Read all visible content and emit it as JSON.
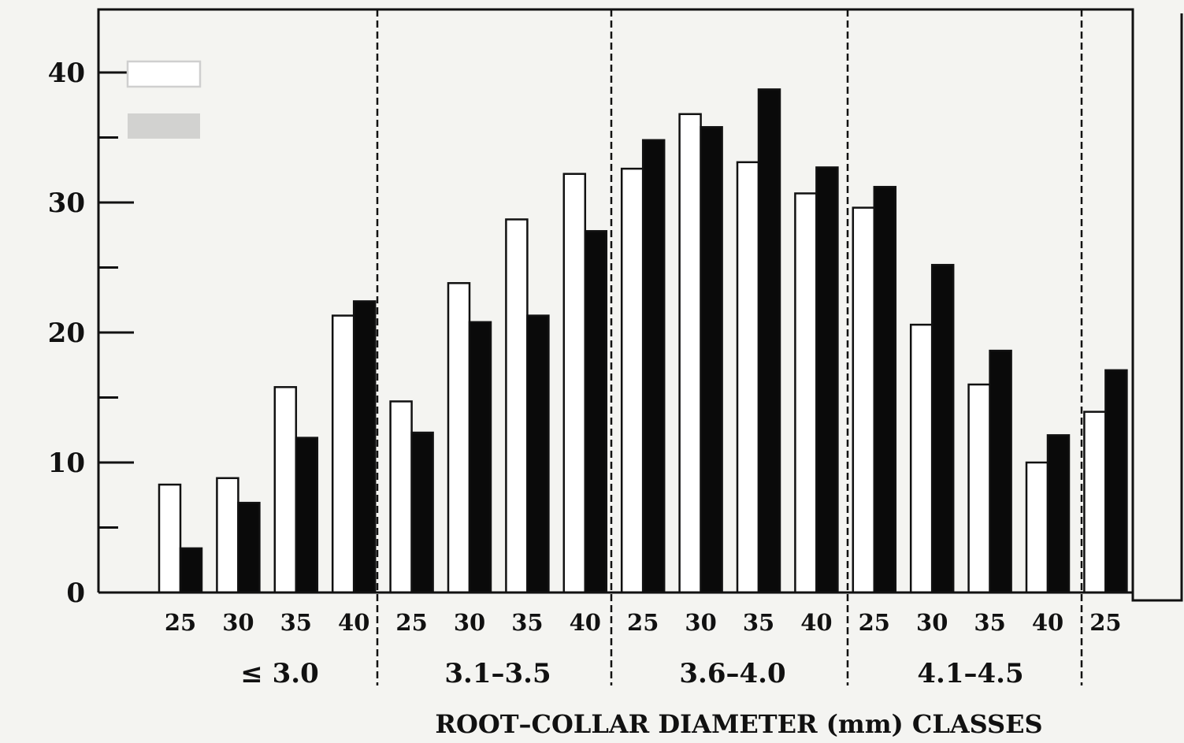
{
  "chart_data": {
    "type": "bar",
    "xlabel": "ROOT–COLLAR DIAMETER (mm) CLASSES",
    "ylabel": "",
    "ylim": [
      0,
      45
    ],
    "yticks": [
      "0",
      "10",
      "20",
      "30",
      "40"
    ],
    "groups": [
      {
        "label": "≤ 3.0",
        "categories": [
          "25",
          "30",
          "35",
          "40"
        ]
      },
      {
        "label": "3.1–3.5",
        "categories": [
          "25",
          "30",
          "35",
          "40"
        ]
      },
      {
        "label": "3.6–4.0",
        "categories": [
          "25",
          "30",
          "35",
          "40"
        ]
      },
      {
        "label": "4.1–4.5",
        "categories": [
          "25",
          "30",
          "35",
          "40"
        ]
      },
      {
        "label": "",
        "categories": [
          "25"
        ]
      }
    ],
    "series": [
      {
        "fill": "#ffffff",
        "values": [
          8.3,
          8.8,
          15.8,
          21.3,
          14.7,
          23.8,
          28.7,
          32.2,
          32.6,
          36.8,
          33.1,
          30.7,
          29.6,
          20.6,
          16.0,
          10.0,
          13.9
        ]
      },
      {
        "fill": "#0a0a0a",
        "values": [
          3.4,
          6.9,
          11.9,
          22.4,
          12.3,
          20.8,
          21.3,
          27.8,
          34.8,
          35.8,
          38.7,
          32.7,
          31.2,
          25.2,
          18.6,
          12.1,
          17.1
        ]
      }
    ],
    "legend": "top-left",
    "grid": false
  }
}
